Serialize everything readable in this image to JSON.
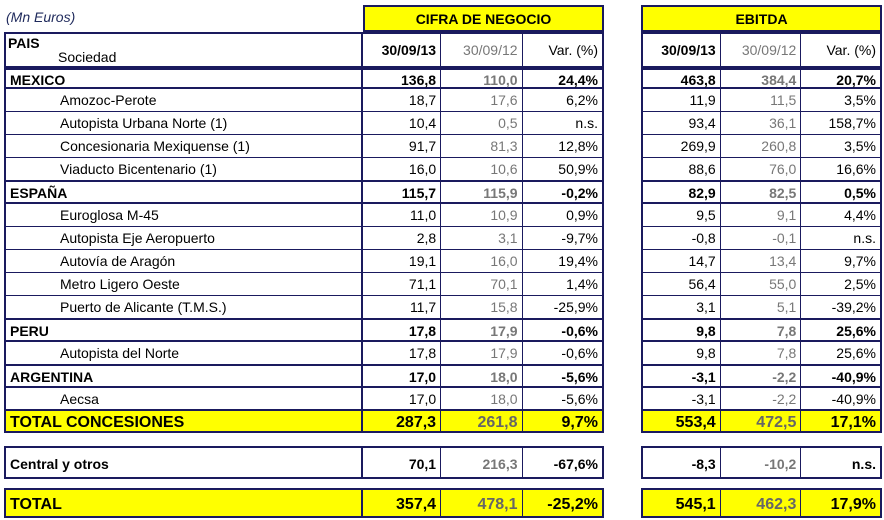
{
  "units": "(Mn Euros)",
  "headers": {
    "cifra": "CIFRA DE NEGOCIO",
    "ebitda": "EBITDA"
  },
  "col_head": {
    "pais": "PAIS",
    "sociedad": "Sociedad",
    "d1": "30/09/13",
    "d2": "30/09/12",
    "var": "Var. (%)"
  },
  "rows": [
    {
      "n": "MEXICO",
      "a": "136,8",
      "b": "110,0",
      "c": "24,4%",
      "d": "463,8",
      "e": "384,4",
      "f": "20,7%"
    },
    {
      "n": "Amozoc-Perote",
      "a": "18,7",
      "b": "17,6",
      "c": "6,2%",
      "d": "11,9",
      "e": "11,5",
      "f": "3,5%"
    },
    {
      "n": "Autopista Urbana Norte (1)",
      "a": "10,4",
      "b": "0,5",
      "c": "n.s.",
      "d": "93,4",
      "e": "36,1",
      "f": "158,7%"
    },
    {
      "n": "Concesionaria Mexiquense (1)",
      "a": "91,7",
      "b": "81,3",
      "c": "12,8%",
      "d": "269,9",
      "e": "260,8",
      "f": "3,5%"
    },
    {
      "n": "Viaducto Bicentenario (1)",
      "a": "16,0",
      "b": "10,6",
      "c": "50,9%",
      "d": "88,6",
      "e": "76,0",
      "f": "16,6%"
    },
    {
      "n": "ESPAÑA",
      "a": "115,7",
      "b": "115,9",
      "c": "-0,2%",
      "d": "82,9",
      "e": "82,5",
      "f": "0,5%"
    },
    {
      "n": "Euroglosa M-45",
      "a": "11,0",
      "b": "10,9",
      "c": "0,9%",
      "d": "9,5",
      "e": "9,1",
      "f": "4,4%"
    },
    {
      "n": "Autopista Eje Aeropuerto",
      "a": "2,8",
      "b": "3,1",
      "c": "-9,7%",
      "d": "-0,8",
      "e": "-0,1",
      "f": "n.s."
    },
    {
      "n": "Autovía de Aragón",
      "a": "19,1",
      "b": "16,0",
      "c": "19,4%",
      "d": "14,7",
      "e": "13,4",
      "f": "9,7%"
    },
    {
      "n": "Metro Ligero Oeste",
      "a": "71,1",
      "b": "70,1",
      "c": "1,4%",
      "d": "56,4",
      "e": "55,0",
      "f": "2,5%"
    },
    {
      "n": "Puerto de Alicante (T.M.S.)",
      "a": "11,7",
      "b": "15,8",
      "c": "-25,9%",
      "d": "3,1",
      "e": "5,1",
      "f": "-39,2%"
    },
    {
      "n": "PERU",
      "a": "17,8",
      "b": "17,9",
      "c": "-0,6%",
      "d": "9,8",
      "e": "7,8",
      "f": "25,6%"
    },
    {
      "n": "Autopista del Norte",
      "a": "17,8",
      "b": "17,9",
      "c": "-0,6%",
      "d": "9,8",
      "e": "7,8",
      "f": "25,6%"
    },
    {
      "n": "ARGENTINA",
      "a": "17,0",
      "b": "18,0",
      "c": "-5,6%",
      "d": "-3,1",
      "e": "-2,2",
      "f": "-40,9%"
    },
    {
      "n": "Aecsa",
      "a": "17,0",
      "b": "18,0",
      "c": "-5,6%",
      "d": "-3,1",
      "e": "-2,2",
      "f": "-40,9%"
    },
    {
      "n": "TOTAL CONCESIONES",
      "a": "287,3",
      "b": "261,8",
      "c": "9,7%",
      "d": "553,4",
      "e": "472,5",
      "f": "17,1%"
    },
    {
      "n": "Central y otros",
      "a": "70,1",
      "b": "216,3",
      "c": "-67,6%",
      "d": "-8,3",
      "e": "-10,2",
      "f": "n.s."
    },
    {
      "n": "TOTAL",
      "a": "357,4",
      "b": "478,1",
      "c": "-25,2%",
      "d": "545,1",
      "e": "462,3",
      "f": "17,9%"
    }
  ],
  "colors": {
    "highlight": "#ffff00",
    "border": "#1a1a5e",
    "prior_year": "#777777"
  }
}
